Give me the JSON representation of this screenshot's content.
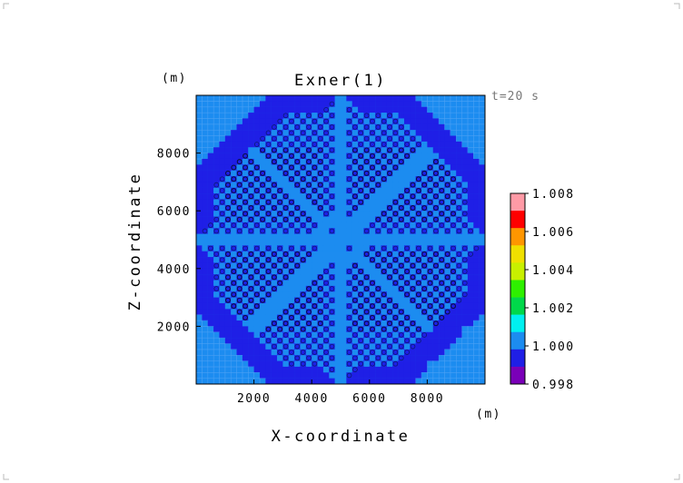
{
  "chart_data": {
    "type": "heatmap",
    "title": "Exner(1)",
    "time_label": "t=20 s",
    "xlabel": "X-coordinate",
    "ylabel": "Z-coordinate",
    "x_unit": "(m)",
    "y_unit": "(m)",
    "xlim": [
      0,
      10000
    ],
    "ylim": [
      0,
      10000
    ],
    "x_ticks": [
      2000,
      4000,
      6000,
      8000
    ],
    "y_ticks": [
      2000,
      4000,
      6000,
      8000
    ],
    "x_tick_labels": [
      "2000",
      "4000",
      "6000",
      "8000"
    ],
    "y_tick_labels": [
      "2000",
      "4000",
      "6000",
      "8000"
    ],
    "grid_cells": [
      50,
      50
    ],
    "colorbar": {
      "levels": [
        0.998,
        1.0,
        1.002,
        1.004,
        1.006,
        1.008
      ],
      "labels": [
        "0.998",
        "1.000",
        "1.002",
        "1.004",
        "1.006",
        "1.008"
      ],
      "colors": [
        "#7a00b8",
        "#1f1fe6",
        "#1c8cf0",
        "#00f0f0",
        "#00d84a",
        "#2ef000",
        "#c8f000",
        "#f0e000",
        "#ff9600",
        "#ff0000",
        "#ff9aa6"
      ]
    },
    "field_description_colors": {
      "background": "#1c8cf0",
      "low": "#1f1fe6",
      "cell_edge": "#0a1a6e"
    }
  }
}
